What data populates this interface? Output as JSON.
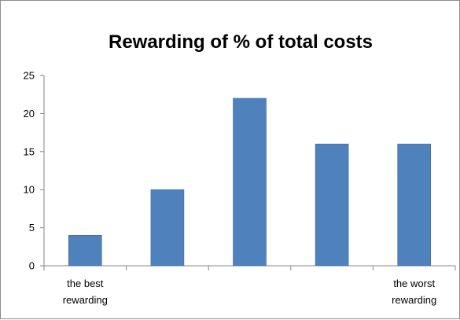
{
  "chart_data": {
    "type": "bar",
    "title": "Rewarding of % of total costs",
    "categories": [
      [
        "the best",
        "rewarding"
      ],
      [],
      [],
      [],
      [
        "the worst",
        "rewarding"
      ]
    ],
    "values": [
      4,
      10,
      22,
      16,
      16
    ],
    "ylim": [
      0,
      25
    ],
    "yticks": [
      0,
      5,
      10,
      15,
      20,
      25
    ],
    "grid": false,
    "legend": "none",
    "xlabel": "",
    "ylabel": "",
    "colors": {
      "bar": "#4f81bd",
      "bar_edge": "#3b6aa0",
      "axis": "#868686",
      "frame": "#8c8c8c"
    }
  }
}
